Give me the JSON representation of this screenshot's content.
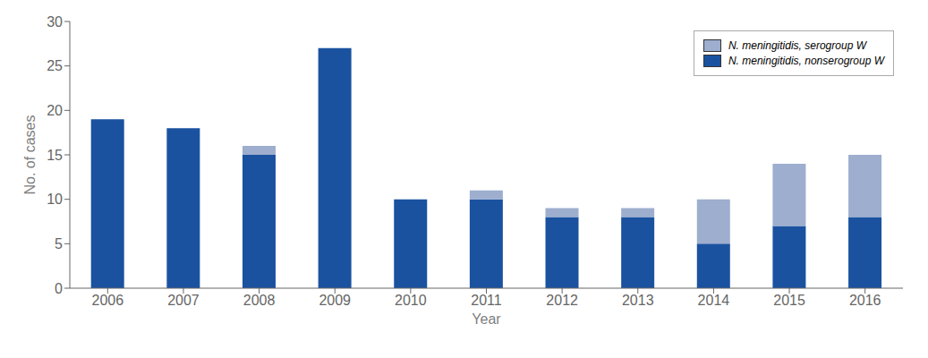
{
  "chart_data": {
    "type": "bar",
    "categories": [
      "2006",
      "2007",
      "2008",
      "2009",
      "2010",
      "2011",
      "2012",
      "2013",
      "2014",
      "2015",
      "2016"
    ],
    "series": [
      {
        "name": "N. meningitidis, nonserogroup W",
        "color": "#1a52a0",
        "values": [
          19,
          18,
          15,
          27,
          10,
          10,
          8,
          8,
          5,
          7,
          8
        ]
      },
      {
        "name": "N. meningitidis, serogroup W",
        "color": "#9daece",
        "values": [
          0,
          0,
          1,
          0,
          0,
          1,
          1,
          1,
          5,
          7,
          7
        ]
      }
    ],
    "stacked": true,
    "xlabel": "Year",
    "ylabel": "No. of cases",
    "ylim": [
      0,
      30
    ],
    "yticks": [
      0,
      5,
      10,
      15,
      20,
      25,
      30
    ],
    "grid": false,
    "legend": "upper right"
  }
}
